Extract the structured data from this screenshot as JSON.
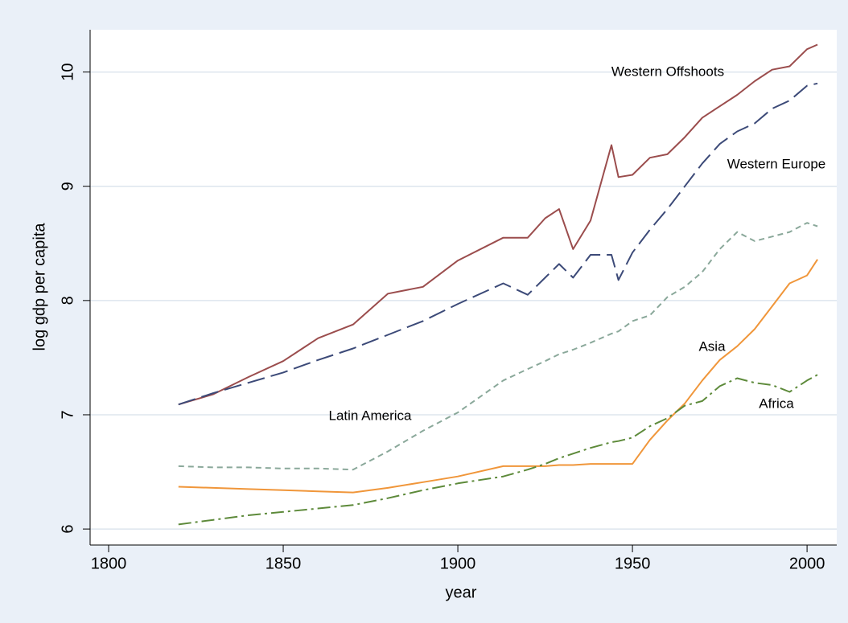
{
  "chart_data": {
    "type": "line",
    "x_label": "year",
    "y_label": "log gdp per capita",
    "x": [
      1820,
      1830,
      1840,
      1850,
      1860,
      1870,
      1880,
      1890,
      1900,
      1913,
      1920,
      1925,
      1929,
      1933,
      1938,
      1944,
      1946,
      1950,
      1955,
      1960,
      1965,
      1970,
      1975,
      1980,
      1985,
      1990,
      1995,
      2000,
      2003
    ],
    "series": [
      {
        "name": "Western Offshoots",
        "color": "#9b4d4d",
        "values": [
          7.09,
          7.18,
          7.33,
          7.47,
          7.67,
          7.79,
          8.06,
          8.12,
          8.35,
          8.55,
          8.55,
          8.72,
          8.8,
          8.45,
          8.7,
          9.36,
          9.08,
          9.1,
          9.25,
          9.28,
          9.43,
          9.6,
          9.7,
          9.8,
          9.92,
          10.02,
          10.05,
          10.2,
          10.24
        ]
      },
      {
        "name": "Western Europe",
        "color": "#3c4a78",
        "values": [
          7.09,
          7.19,
          7.28,
          7.37,
          7.48,
          7.58,
          7.7,
          7.82,
          7.97,
          8.15,
          8.05,
          8.2,
          8.32,
          8.2,
          8.4,
          8.4,
          8.18,
          8.42,
          8.62,
          8.8,
          9.0,
          9.2,
          9.37,
          9.48,
          9.55,
          9.68,
          9.75,
          9.88,
          9.9
        ]
      },
      {
        "name": "Latin America",
        "color": "#8aa89a",
        "values": [
          6.55,
          6.54,
          6.54,
          6.53,
          6.53,
          6.52,
          6.68,
          6.86,
          7.02,
          7.3,
          7.4,
          7.47,
          7.53,
          7.57,
          7.63,
          7.71,
          7.73,
          7.82,
          7.87,
          8.03,
          8.12,
          8.25,
          8.45,
          8.6,
          8.52,
          8.56,
          8.6,
          8.68,
          8.65
        ]
      },
      {
        "name": "Asia",
        "color": "#f0963a",
        "values": [
          6.37,
          6.36,
          6.35,
          6.34,
          6.33,
          6.32,
          6.36,
          6.41,
          6.46,
          6.55,
          6.55,
          6.55,
          6.56,
          6.56,
          6.57,
          6.57,
          6.57,
          6.57,
          6.78,
          6.95,
          7.1,
          7.3,
          7.48,
          7.6,
          7.75,
          7.95,
          8.15,
          8.22,
          8.36
        ]
      },
      {
        "name": "Africa",
        "color": "#5d8a3a",
        "values": [
          6.04,
          6.08,
          6.12,
          6.15,
          6.18,
          6.21,
          6.27,
          6.34,
          6.4,
          6.46,
          6.52,
          6.57,
          6.62,
          6.66,
          6.71,
          6.76,
          6.77,
          6.8,
          6.9,
          6.97,
          7.08,
          7.12,
          7.25,
          7.32,
          7.28,
          7.26,
          7.2,
          7.3,
          7.35
        ]
      }
    ],
    "xlim": [
      1794.7,
      2008.5
    ],
    "ylim": [
      5.86,
      10.37
    ],
    "xticks": [
      1800,
      1850,
      1900,
      1950,
      2000
    ],
    "yticks": [
      6,
      7,
      8,
      9,
      10
    ],
    "grid": true
  }
}
